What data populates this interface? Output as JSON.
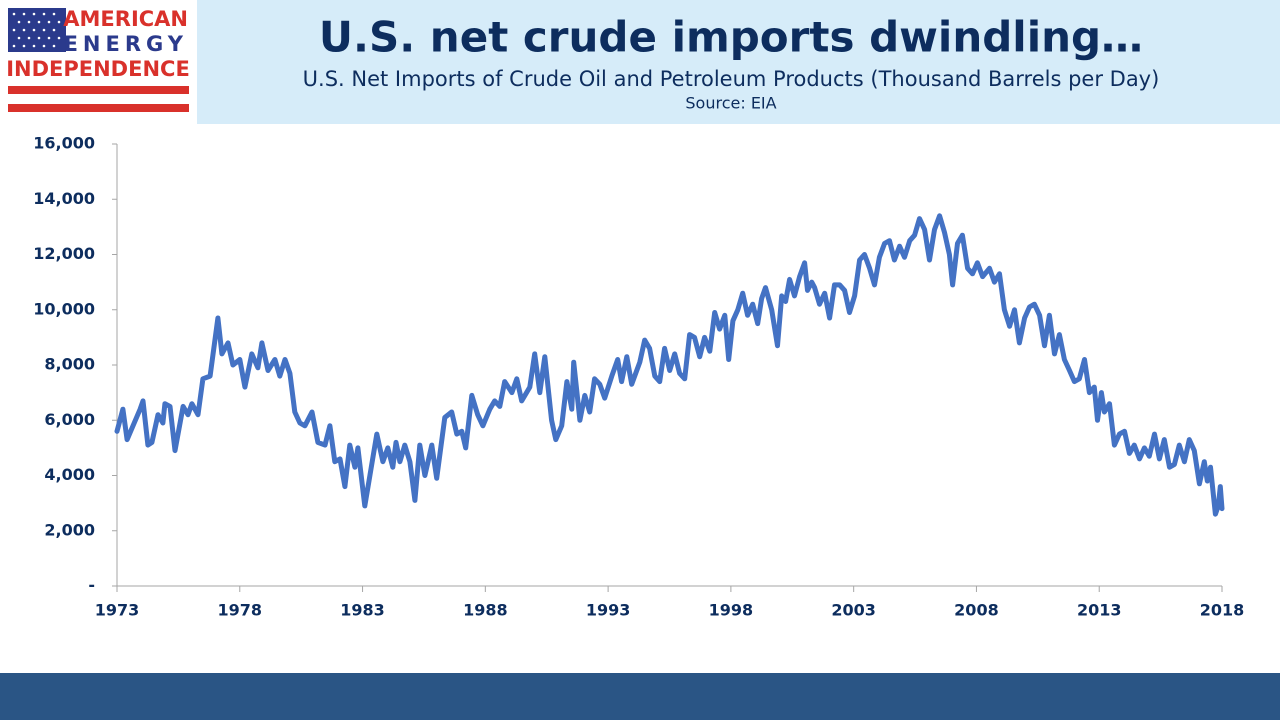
{
  "logo": {
    "line1": "AMERICAN",
    "line2": "ENERGY",
    "line3": "INDEPENDENCE"
  },
  "chart_data": {
    "type": "line",
    "title": "U.S. net crude imports dwindling…",
    "subtitle": "U.S. Net Imports of Crude Oil and Petroleum Products (Thousand Barrels per Day)",
    "source": "Source: EIA",
    "color": "#4472c4",
    "grid": false,
    "xlim": [
      1973,
      2018
    ],
    "xticks": [
      1973,
      1978,
      1983,
      1988,
      1993,
      1998,
      2003,
      2008,
      2013,
      2018
    ],
    "ylim": [
      0,
      16000
    ],
    "yticks": [
      {
        "value": 0,
        "label": "-"
      },
      {
        "value": 2000,
        "label": "2,000"
      },
      {
        "value": 4000,
        "label": "4,000"
      },
      {
        "value": 6000,
        "label": "6,000"
      },
      {
        "value": 8000,
        "label": "8,000"
      },
      {
        "value": 10000,
        "label": "10,000"
      },
      {
        "value": 12000,
        "label": "12,000"
      },
      {
        "value": 14000,
        "label": "14,000"
      },
      {
        "value": 16000,
        "label": "16,000"
      }
    ],
    "x": [
      1973.0,
      1973.24,
      1973.41,
      1973.65,
      1973.94,
      1974.06,
      1974.26,
      1974.42,
      1974.67,
      1974.87,
      1974.95,
      1975.16,
      1975.36,
      1975.69,
      1975.89,
      1976.05,
      1976.3,
      1976.5,
      1976.79,
      1977.11,
      1977.27,
      1977.52,
      1977.72,
      1978.0,
      1978.21,
      1978.49,
      1978.74,
      1978.9,
      1979.15,
      1979.43,
      1979.63,
      1979.84,
      1980.04,
      1980.24,
      1980.45,
      1980.65,
      1980.94,
      1981.18,
      1981.47,
      1981.67,
      1981.87,
      1982.08,
      1982.28,
      1982.48,
      1982.69,
      1982.81,
      1983.09,
      1983.3,
      1983.58,
      1983.83,
      1984.03,
      1984.23,
      1984.36,
      1984.52,
      1984.72,
      1984.93,
      1985.13,
      1985.33,
      1985.54,
      1985.82,
      1986.02,
      1986.35,
      1986.63,
      1986.84,
      1987.04,
      1987.2,
      1987.45,
      1987.69,
      1987.9,
      1988.18,
      1988.38,
      1988.59,
      1988.79,
      1989.08,
      1989.28,
      1989.48,
      1989.81,
      1990.01,
      1990.22,
      1990.42,
      1990.7,
      1990.87,
      1991.11,
      1991.32,
      1991.52,
      1991.6,
      1991.85,
      1992.05,
      1992.25,
      1992.45,
      1992.66,
      1992.86,
      1993.15,
      1993.39,
      1993.55,
      1993.76,
      1993.96,
      1994.29,
      1994.49,
      1994.69,
      1994.9,
      1995.1,
      1995.3,
      1995.51,
      1995.71,
      1995.91,
      1996.12,
      1996.32,
      1996.52,
      1996.73,
      1996.93,
      1997.14,
      1997.34,
      1997.54,
      1997.75,
      1997.91,
      1998.08,
      1998.28,
      1998.48,
      1998.68,
      1998.89,
      1999.09,
      1999.25,
      1999.41,
      1999.66,
      1999.9,
      2000.07,
      2000.23,
      2000.39,
      2000.59,
      2000.8,
      2001.0,
      2001.12,
      2001.29,
      2001.41,
      2001.61,
      2001.82,
      2002.02,
      2002.22,
      2002.43,
      2002.63,
      2002.83,
      2003.04,
      2003.24,
      2003.44,
      2003.65,
      2003.85,
      2004.05,
      2004.26,
      2004.46,
      2004.66,
      2004.87,
      2005.07,
      2005.28,
      2005.48,
      2005.68,
      2005.89,
      2006.09,
      2006.29,
      2006.5,
      2006.7,
      2006.9,
      2007.03,
      2007.23,
      2007.43,
      2007.64,
      2007.84,
      2008.04,
      2008.25,
      2008.53,
      2008.73,
      2008.94,
      2009.14,
      2009.35,
      2009.55,
      2009.75,
      2009.96,
      2010.16,
      2010.36,
      2010.57,
      2010.77,
      2010.97,
      2011.18,
      2011.38,
      2011.58,
      2011.79,
      2011.99,
      2012.19,
      2012.4,
      2012.6,
      2012.8,
      2012.93,
      2013.09,
      2013.21,
      2013.42,
      2013.62,
      2013.82,
      2014.03,
      2014.23,
      2014.43,
      2014.64,
      2014.84,
      2015.04,
      2015.25,
      2015.45,
      2015.65,
      2015.86,
      2016.06,
      2016.26,
      2016.47,
      2016.67,
      2016.87,
      2017.08,
      2017.28,
      2017.4,
      2017.53,
      2017.73,
      2017.85,
      2017.93,
      2018.0
    ],
    "values": [
      5600,
      6400,
      5300,
      5800,
      6400,
      6700,
      5100,
      5200,
      6200,
      5900,
      6600,
      6500,
      4900,
      6500,
      6200,
      6600,
      6200,
      7500,
      7600,
      9700,
      8400,
      8800,
      8000,
      8200,
      7200,
      8400,
      7900,
      8800,
      7800,
      8200,
      7600,
      8200,
      7700,
      6300,
      5900,
      5800,
      6300,
      5200,
      5100,
      5800,
      4500,
      4600,
      3600,
      5100,
      4300,
      5000,
      2900,
      4000,
      5500,
      4500,
      5000,
      4300,
      5200,
      4500,
      5100,
      4500,
      3100,
      5100,
      4000,
      5100,
      3900,
      6100,
      6300,
      5500,
      5600,
      5000,
      6900,
      6200,
      5800,
      6400,
      6700,
      6500,
      7400,
      7000,
      7500,
      6700,
      7200,
      8400,
      7000,
      8300,
      6000,
      5300,
      5800,
      7400,
      6400,
      8100,
      6000,
      6900,
      6300,
      7500,
      7300,
      6800,
      7600,
      8200,
      7400,
      8300,
      7300,
      8100,
      8900,
      8600,
      7600,
      7400,
      8600,
      7800,
      8400,
      7700,
      7500,
      9100,
      9000,
      8300,
      9000,
      8500,
      9900,
      9300,
      9800,
      8200,
      9600,
      10000,
      10600,
      9800,
      10200,
      9500,
      10400,
      10800,
      10000,
      8700,
      10500,
      10300,
      11100,
      10500,
      11200,
      11700,
      10700,
      11000,
      10800,
      10200,
      10600,
      9700,
      10900,
      10900,
      10700,
      9900,
      10500,
      11800,
      12000,
      11500,
      10900,
      11900,
      12400,
      12500,
      11800,
      12300,
      11900,
      12500,
      12700,
      13300,
      12900,
      11800,
      12900,
      13400,
      12800,
      12000,
      10900,
      12400,
      12700,
      11500,
      11300,
      11700,
      11200,
      11500,
      11000,
      11300,
      10000,
      9400,
      10000,
      8800,
      9700,
      10100,
      10200,
      9800,
      8700,
      9800,
      8400,
      9100,
      8200,
      7800,
      7400,
      7500,
      8200,
      7000,
      7200,
      6000,
      7000,
      6300,
      6600,
      5100,
      5500,
      5600,
      4800,
      5100,
      4600,
      5000,
      4700,
      5500,
      4600,
      5300,
      4300,
      4400,
      5100,
      4500,
      5300,
      4900,
      3700,
      4500,
      3800,
      4300,
      2600,
      2900,
      3600,
      2800
    ]
  }
}
